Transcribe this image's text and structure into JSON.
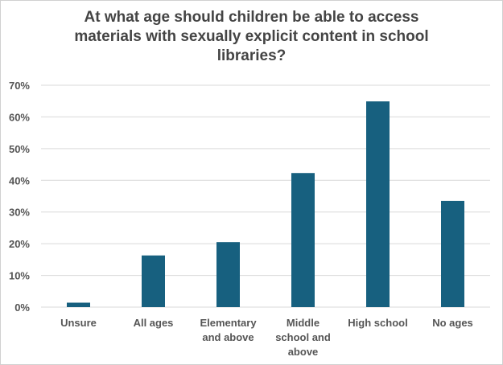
{
  "chart_data": {
    "type": "bar",
    "title_lines": [
      "At what age should children be able to access",
      "materials with sexually explicit content in school",
      "libraries?"
    ],
    "categories": [
      [
        "Unsure"
      ],
      [
        "All ages"
      ],
      [
        "Elementary",
        "and above"
      ],
      [
        "Middle",
        "school and",
        "above"
      ],
      [
        "High school"
      ],
      [
        "No ages"
      ]
    ],
    "values": [
      1.4,
      16.3,
      20.5,
      42.3,
      64.9,
      33.5
    ],
    "yticks": [
      "0%",
      "10%",
      "20%",
      "30%",
      "40%",
      "50%",
      "60%",
      "70%"
    ],
    "ylim": [
      0,
      70
    ],
    "xlabel": "",
    "ylabel": "",
    "grid": true,
    "bar_color": "#17607f",
    "grid_color": "#d9d9d9"
  }
}
